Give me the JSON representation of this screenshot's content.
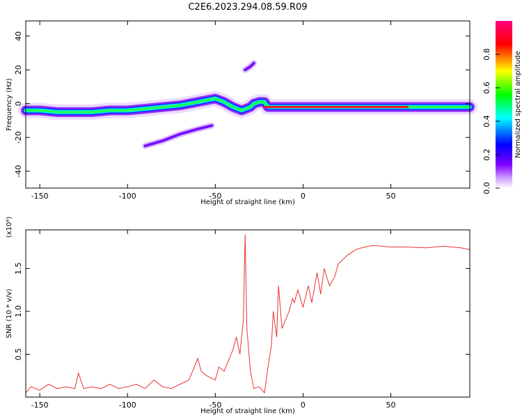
{
  "page": {
    "title": "C2E6.2023.294.08.59.R09"
  },
  "chart_data": [
    {
      "type": "heatmap",
      "title": "C2E6.2023.294.08.59.R09",
      "xlabel": "Height of straight line (km)",
      "ylabel": "Frequency (Hz)",
      "xlim": [
        -158,
        95
      ],
      "ylim": [
        -50,
        49
      ],
      "x_ticks": [
        -150,
        -100,
        -50,
        0,
        50
      ],
      "y_ticks": [
        -40,
        -20,
        0,
        20,
        40
      ],
      "colorbar": {
        "label": "Normalized spectral amplitude",
        "range": [
          0,
          1
        ],
        "ticks": [
          "0.0",
          "0.2",
          "0.4",
          "0.6",
          "0.8"
        ],
        "colors": [
          "#ffffff",
          "#8000ff",
          "#0000ff",
          "#00ffff",
          "#00ff00",
          "#ffff00",
          "#ff0000",
          "#ff0080"
        ]
      },
      "main_trace": {
        "x": [
          -158,
          -150,
          -140,
          -130,
          -120,
          -110,
          -100,
          -90,
          -80,
          -70,
          -60,
          -55,
          -50,
          -45,
          -40,
          -35,
          -30,
          -28,
          -25,
          -22,
          -20,
          -15,
          0,
          50,
          95
        ],
        "y": [
          -4,
          -4,
          -5,
          -5,
          -5,
          -4,
          -4,
          -3,
          -2,
          -1,
          1,
          2,
          3,
          1,
          -2,
          -4,
          -2,
          0,
          1,
          1,
          -2,
          -2,
          -2,
          -2,
          -2
        ]
      },
      "secondary_traces": [
        {
          "x": [
            -90,
            -80,
            -70,
            -60,
            -52
          ],
          "y": [
            -25,
            -22,
            -18,
            -15,
            -13
          ]
        },
        {
          "x": [
            -33,
            -30,
            -28
          ],
          "y": [
            20,
            22,
            24
          ]
        }
      ]
    },
    {
      "type": "line",
      "title": "",
      "xlabel": "Height of straight line (km)",
      "ylabel": "SNR (10 * v/v)",
      "y_multiplier": "(x10⁴)",
      "xlim": [
        -158,
        95
      ],
      "ylim": [
        0,
        1.95
      ],
      "x_ticks": [
        -150,
        -100,
        -50,
        0,
        50
      ],
      "y_ticks": [
        0.5,
        1.0,
        1.5
      ],
      "y_tick_labels": [
        "0.5",
        "1.0",
        "1.5"
      ],
      "series": [
        {
          "color": "#e8312f",
          "x": [
            -158,
            -155,
            -150,
            -145,
            -140,
            -135,
            -130,
            -128,
            -125,
            -120,
            -115,
            -110,
            -105,
            -100,
            -95,
            -90,
            -85,
            -80,
            -75,
            -70,
            -65,
            -62,
            -60,
            -58,
            -55,
            -50,
            -48,
            -45,
            -42,
            -40,
            -38,
            -36,
            -34,
            -33,
            -32,
            -30,
            -28,
            -25,
            -22,
            -20,
            -18,
            -17,
            -15,
            -14,
            -12,
            -10,
            -8,
            -6,
            -5,
            -3,
            0,
            3,
            5,
            8,
            10,
            12,
            15,
            18,
            20,
            25,
            30,
            35,
            40,
            50,
            60,
            70,
            80,
            90,
            95
          ],
          "y": [
            0.05,
            0.12,
            0.08,
            0.15,
            0.1,
            0.12,
            0.1,
            0.28,
            0.1,
            0.12,
            0.1,
            0.15,
            0.1,
            0.12,
            0.15,
            0.1,
            0.2,
            0.12,
            0.1,
            0.15,
            0.2,
            0.35,
            0.45,
            0.3,
            0.25,
            0.2,
            0.35,
            0.3,
            0.45,
            0.55,
            0.7,
            0.5,
            0.9,
            1.9,
            0.8,
            0.3,
            0.1,
            0.12,
            0.05,
            0.35,
            0.6,
            1.0,
            0.7,
            1.3,
            0.8,
            0.9,
            1.0,
            1.15,
            1.1,
            1.25,
            1.05,
            1.3,
            1.1,
            1.45,
            1.2,
            1.5,
            1.3,
            1.4,
            1.55,
            1.65,
            1.72,
            1.75,
            1.77,
            1.75,
            1.75,
            1.74,
            1.76,
            1.74,
            1.72
          ]
        }
      ]
    }
  ]
}
